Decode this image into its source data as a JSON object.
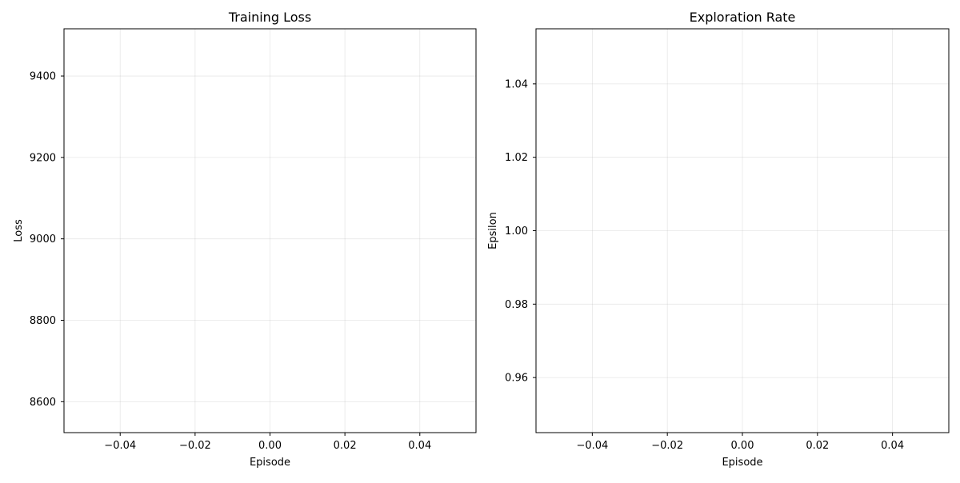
{
  "chart_data": [
    {
      "type": "line",
      "title": "Training Loss",
      "xlabel": "Episode",
      "ylabel": "Loss",
      "xlim": [
        -0.055,
        0.055
      ],
      "ylim": [
        8524,
        9516
      ],
      "xticks": [
        -0.04,
        -0.02,
        0.0,
        0.02,
        0.04
      ],
      "xtick_labels": [
        "−0.04",
        "−0.02",
        "0.00",
        "0.02",
        "0.04"
      ],
      "yticks": [
        8600,
        8800,
        9000,
        9200,
        9400
      ],
      "ytick_labels": [
        "8600",
        "8800",
        "9000",
        "9200",
        "9400"
      ],
      "grid": true,
      "series": []
    },
    {
      "type": "line",
      "title": "Exploration Rate",
      "xlabel": "Episode",
      "ylabel": "Epsilon",
      "xlim": [
        -0.055,
        0.055
      ],
      "ylim": [
        0.945,
        1.055
      ],
      "xticks": [
        -0.04,
        -0.02,
        0.0,
        0.02,
        0.04
      ],
      "xtick_labels": [
        "−0.04",
        "−0.02",
        "0.00",
        "0.02",
        "0.04"
      ],
      "yticks": [
        0.96,
        0.98,
        1.0,
        1.02,
        1.04
      ],
      "ytick_labels": [
        "0.96",
        "0.98",
        "1.00",
        "1.02",
        "1.04"
      ],
      "grid": true,
      "series": []
    }
  ]
}
